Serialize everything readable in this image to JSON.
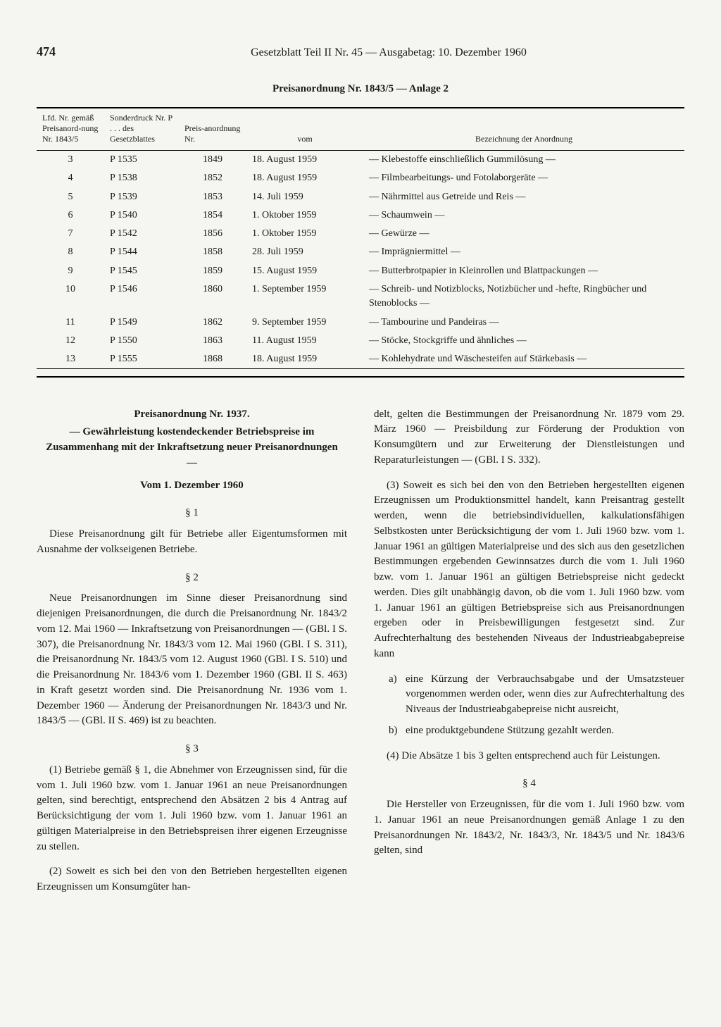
{
  "page_number": "474",
  "running_head": "Gesetzblatt Teil II Nr. 45 — Ausgabetag: 10. Dezember 1960",
  "table_title": "Preisanordnung Nr. 1843/5 — Anlage 2",
  "table": {
    "headers": {
      "lfd": "Lfd. Nr. gemäß Preisanord-nung Nr. 1843/5",
      "sonder": "Sonderdruck Nr. P . . . des Gesetzblattes",
      "preis": "Preis-anordnung Nr.",
      "vom": "vom",
      "bez": "Bezeichnung der Anordnung"
    },
    "rows": [
      {
        "lfd": "3",
        "snd": "P 1535",
        "pnr": "1849",
        "vom": "18. August 1959",
        "bez": "— Klebestoffe einschließlich Gummilösung —"
      },
      {
        "lfd": "4",
        "snd": "P 1538",
        "pnr": "1852",
        "vom": "18. August 1959",
        "bez": "— Filmbearbeitungs- und Fotolaborgeräte —"
      },
      {
        "lfd": "5",
        "snd": "P 1539",
        "pnr": "1853",
        "vom": "14. Juli 1959",
        "bez": "— Nährmittel aus Getreide und Reis —"
      },
      {
        "lfd": "6",
        "snd": "P 1540",
        "pnr": "1854",
        "vom": "1. Oktober 1959",
        "bez": "— Schaumwein —"
      },
      {
        "lfd": "7",
        "snd": "P 1542",
        "pnr": "1856",
        "vom": "1. Oktober 1959",
        "bez": "— Gewürze —"
      },
      {
        "lfd": "8",
        "snd": "P 1544",
        "pnr": "1858",
        "vom": "28. Juli 1959",
        "bez": "— Imprägniermittel —"
      },
      {
        "lfd": "9",
        "snd": "P 1545",
        "pnr": "1859",
        "vom": "15. August 1959",
        "bez": "— Butterbrotpapier in Kleinrollen und Blattpackungen —"
      },
      {
        "lfd": "10",
        "snd": "P 1546",
        "pnr": "1860",
        "vom": "1. September 1959",
        "bez": "— Schreib- und Notizblocks, Notizbücher und -hefte, Ringbücher und Stenoblocks —"
      },
      {
        "lfd": "11",
        "snd": "P 1549",
        "pnr": "1862",
        "vom": "9. September 1959",
        "bez": "— Tambourine und Pandeiras —"
      },
      {
        "lfd": "12",
        "snd": "P 1550",
        "pnr": "1863",
        "vom": "11. August 1959",
        "bez": "— Stöcke, Stockgriffe und ähnliches —"
      },
      {
        "lfd": "13",
        "snd": "P 1555",
        "pnr": "1868",
        "vom": "18. August 1959",
        "bez": "— Kohlehydrate und Wäschesteifen auf Stärkebasis —"
      }
    ]
  },
  "ordnung": {
    "title": "Preisanordnung Nr. 1937.",
    "subtitle": "— Gewährleistung kostendeckender Betriebspreise im Zusammenhang mit der Inkraftsetzung neuer Preisanordnungen —",
    "date": "Vom 1. Dezember 1960",
    "s1_head": "§ 1",
    "s1_p1": "Diese Preisanordnung gilt für Betriebe aller Eigentumsformen mit Ausnahme der volkseigenen Betriebe.",
    "s2_head": "§ 2",
    "s2_p1": "Neue Preisanordnungen im Sinne dieser Preisanordnung sind diejenigen Preisanordnungen, die durch die Preisanordnung Nr. 1843/2 vom 12. Mai 1960 — Inkraftsetzung von Preisanordnungen — (GBl. I S. 307), die Preisanordnung Nr. 1843/3 vom 12. Mai 1960 (GBl. I S. 311), die Preisanordnung Nr. 1843/5 vom 12. August 1960 (GBl. I S. 510) und die Preisanordnung Nr. 1843/6 vom 1. Dezember 1960 (GBl. II S. 463) in Kraft gesetzt worden sind. Die Preisanordnung Nr. 1936 vom 1. Dezember 1960 — Änderung der Preisanordnungen Nr. 1843/3 und Nr. 1843/5 — (GBl. II S. 469) ist zu beachten.",
    "s3_head": "§ 3",
    "s3_p1": "(1) Betriebe gemäß § 1, die Abnehmer von Erzeugnissen sind, für die vom 1. Juli 1960 bzw. vom 1. Januar 1961 an neue Preisanordnungen gelten, sind berechtigt, entsprechend den Absätzen 2 bis 4 Antrag auf Berücksichtigung der vom 1. Juli 1960 bzw. vom 1. Januar 1961 an gültigen Materialpreise in den Betriebspreisen ihrer eigenen Erzeugnisse zu stellen.",
    "s3_p2_a": "(2) Soweit es sich bei den von den Betrieben hergestellten eigenen Erzeugnissen um Konsumgüter han-",
    "s3_p2_b": "delt, gelten die Bestimmungen der Preisanordnung Nr. 1879 vom 29. März 1960 — Preisbildung zur Förderung der Produktion von Konsumgütern und zur Erweiterung der Dienstleistungen und Reparaturleistungen — (GBl. I S. 332).",
    "s3_p3": "(3) Soweit es sich bei den von den Betrieben hergestellten eigenen Erzeugnissen um Produktionsmittel handelt, kann Preisantrag gestellt werden, wenn die betriebsindividuellen, kalkulationsfähigen Selbstkosten unter Berücksichtigung der vom 1. Juli 1960 bzw. vom 1. Januar 1961 an gültigen Materialpreise und des sich aus den gesetzlichen Bestimmungen ergebenden Gewinnsatzes durch die vom 1. Juli 1960 bzw. vom 1. Januar 1961 an gültigen Betriebspreise nicht gedeckt werden. Dies gilt unabhängig davon, ob die vom 1. Juli 1960 bzw. vom 1. Januar 1961 an gültigen Betriebspreise sich aus Preisanordnungen ergeben oder in Preisbewilligungen festgesetzt sind. Zur Aufrechterhaltung des bestehenden Niveaus der Industrieabgabepreise kann",
    "s3_a_lbl": "a)",
    "s3_a": "eine Kürzung der Verbrauchsabgabe und der Umsatzsteuer vorgenommen werden oder, wenn dies zur Aufrechterhaltung des Niveaus der Industrieabgabepreise nicht ausreicht,",
    "s3_b_lbl": "b)",
    "s3_b": "eine produktgebundene Stützung gezahlt werden.",
    "s3_p4": "(4) Die Absätze 1 bis 3 gelten entsprechend auch für Leistungen.",
    "s4_head": "§ 4",
    "s4_p1": "Die Hersteller von Erzeugnissen, für die vom 1. Juli 1960 bzw. vom 1. Januar 1961 an neue Preisanordnungen gemäß Anlage 1 zu den Preisanordnungen Nr. 1843/2, Nr. 1843/3, Nr. 1843/5 und Nr. 1843/6 gelten, sind"
  }
}
